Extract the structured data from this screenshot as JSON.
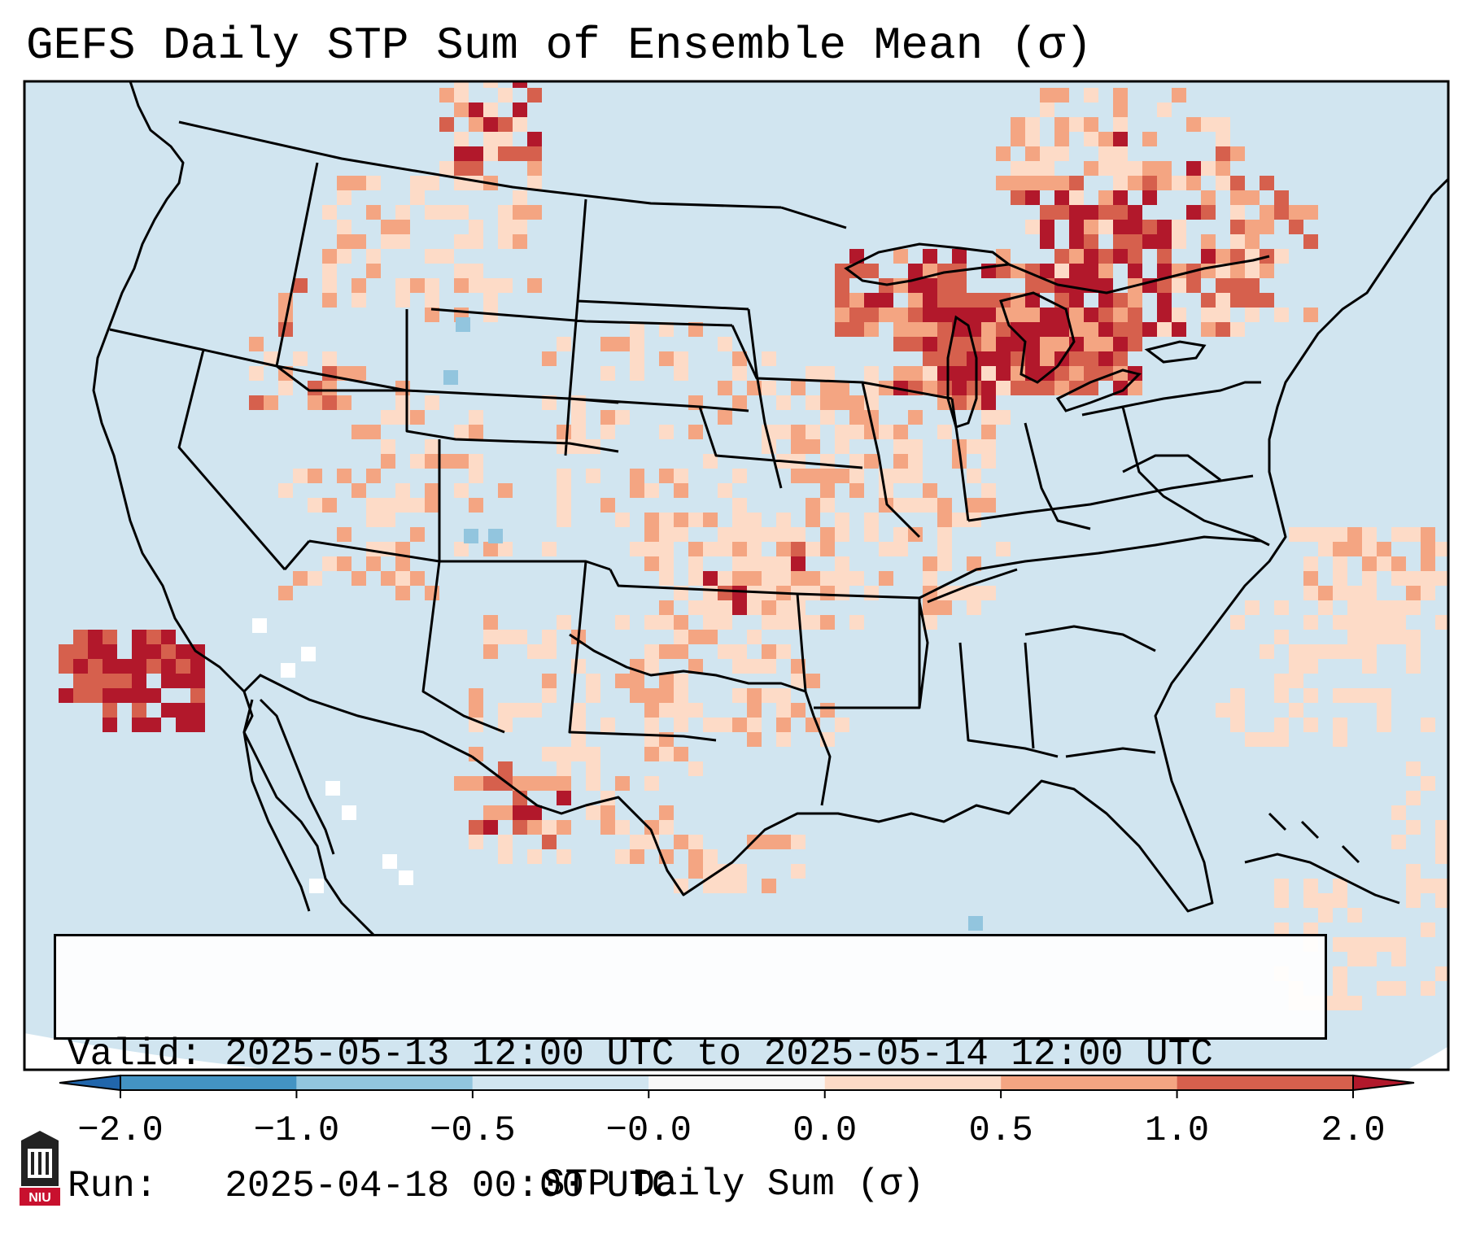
{
  "title": "GEFS Daily STP Sum of Ensemble Mean (σ)",
  "info": {
    "valid_label": "Valid:",
    "valid_text": "2025-05-13 12:00 UTC to 2025-05-14 12:00 UTC",
    "run_label": "Run:",
    "run_text": "2025-04-18 00:00 UTC"
  },
  "colorbar": {
    "label": "STP Daily Sum (σ)",
    "ticks": [
      "−2.0",
      "−1.0",
      "−0.5",
      "−0.0",
      "0.0",
      "0.5",
      "1.0",
      "2.0"
    ],
    "bins": [
      {
        "from": "-inf",
        "to": "-2.0",
        "color": "#2166ac"
      },
      {
        "from": "-2.0",
        "to": "-1.0",
        "color": "#4393c3"
      },
      {
        "from": "-1.0",
        "to": "-0.5",
        "color": "#92c5de"
      },
      {
        "from": "-0.5",
        "to": "-0.0",
        "color": "#d1e5f0"
      },
      {
        "from": "-0.0",
        "to": "0.0",
        "color": "#f7f7f7"
      },
      {
        "from": "0.0",
        "to": "0.5",
        "color": "#fddbc7"
      },
      {
        "from": "0.5",
        "to": "1.0",
        "color": "#f4a582"
      },
      {
        "from": "1.0",
        "to": "2.0",
        "color": "#d6604d"
      },
      {
        "from": "2.0",
        "to": "inf",
        "color": "#b2182b"
      }
    ]
  },
  "map": {
    "background_color": "#d1e5f0",
    "border_color": "#000000"
  },
  "logo": {
    "text": "NIU"
  }
}
